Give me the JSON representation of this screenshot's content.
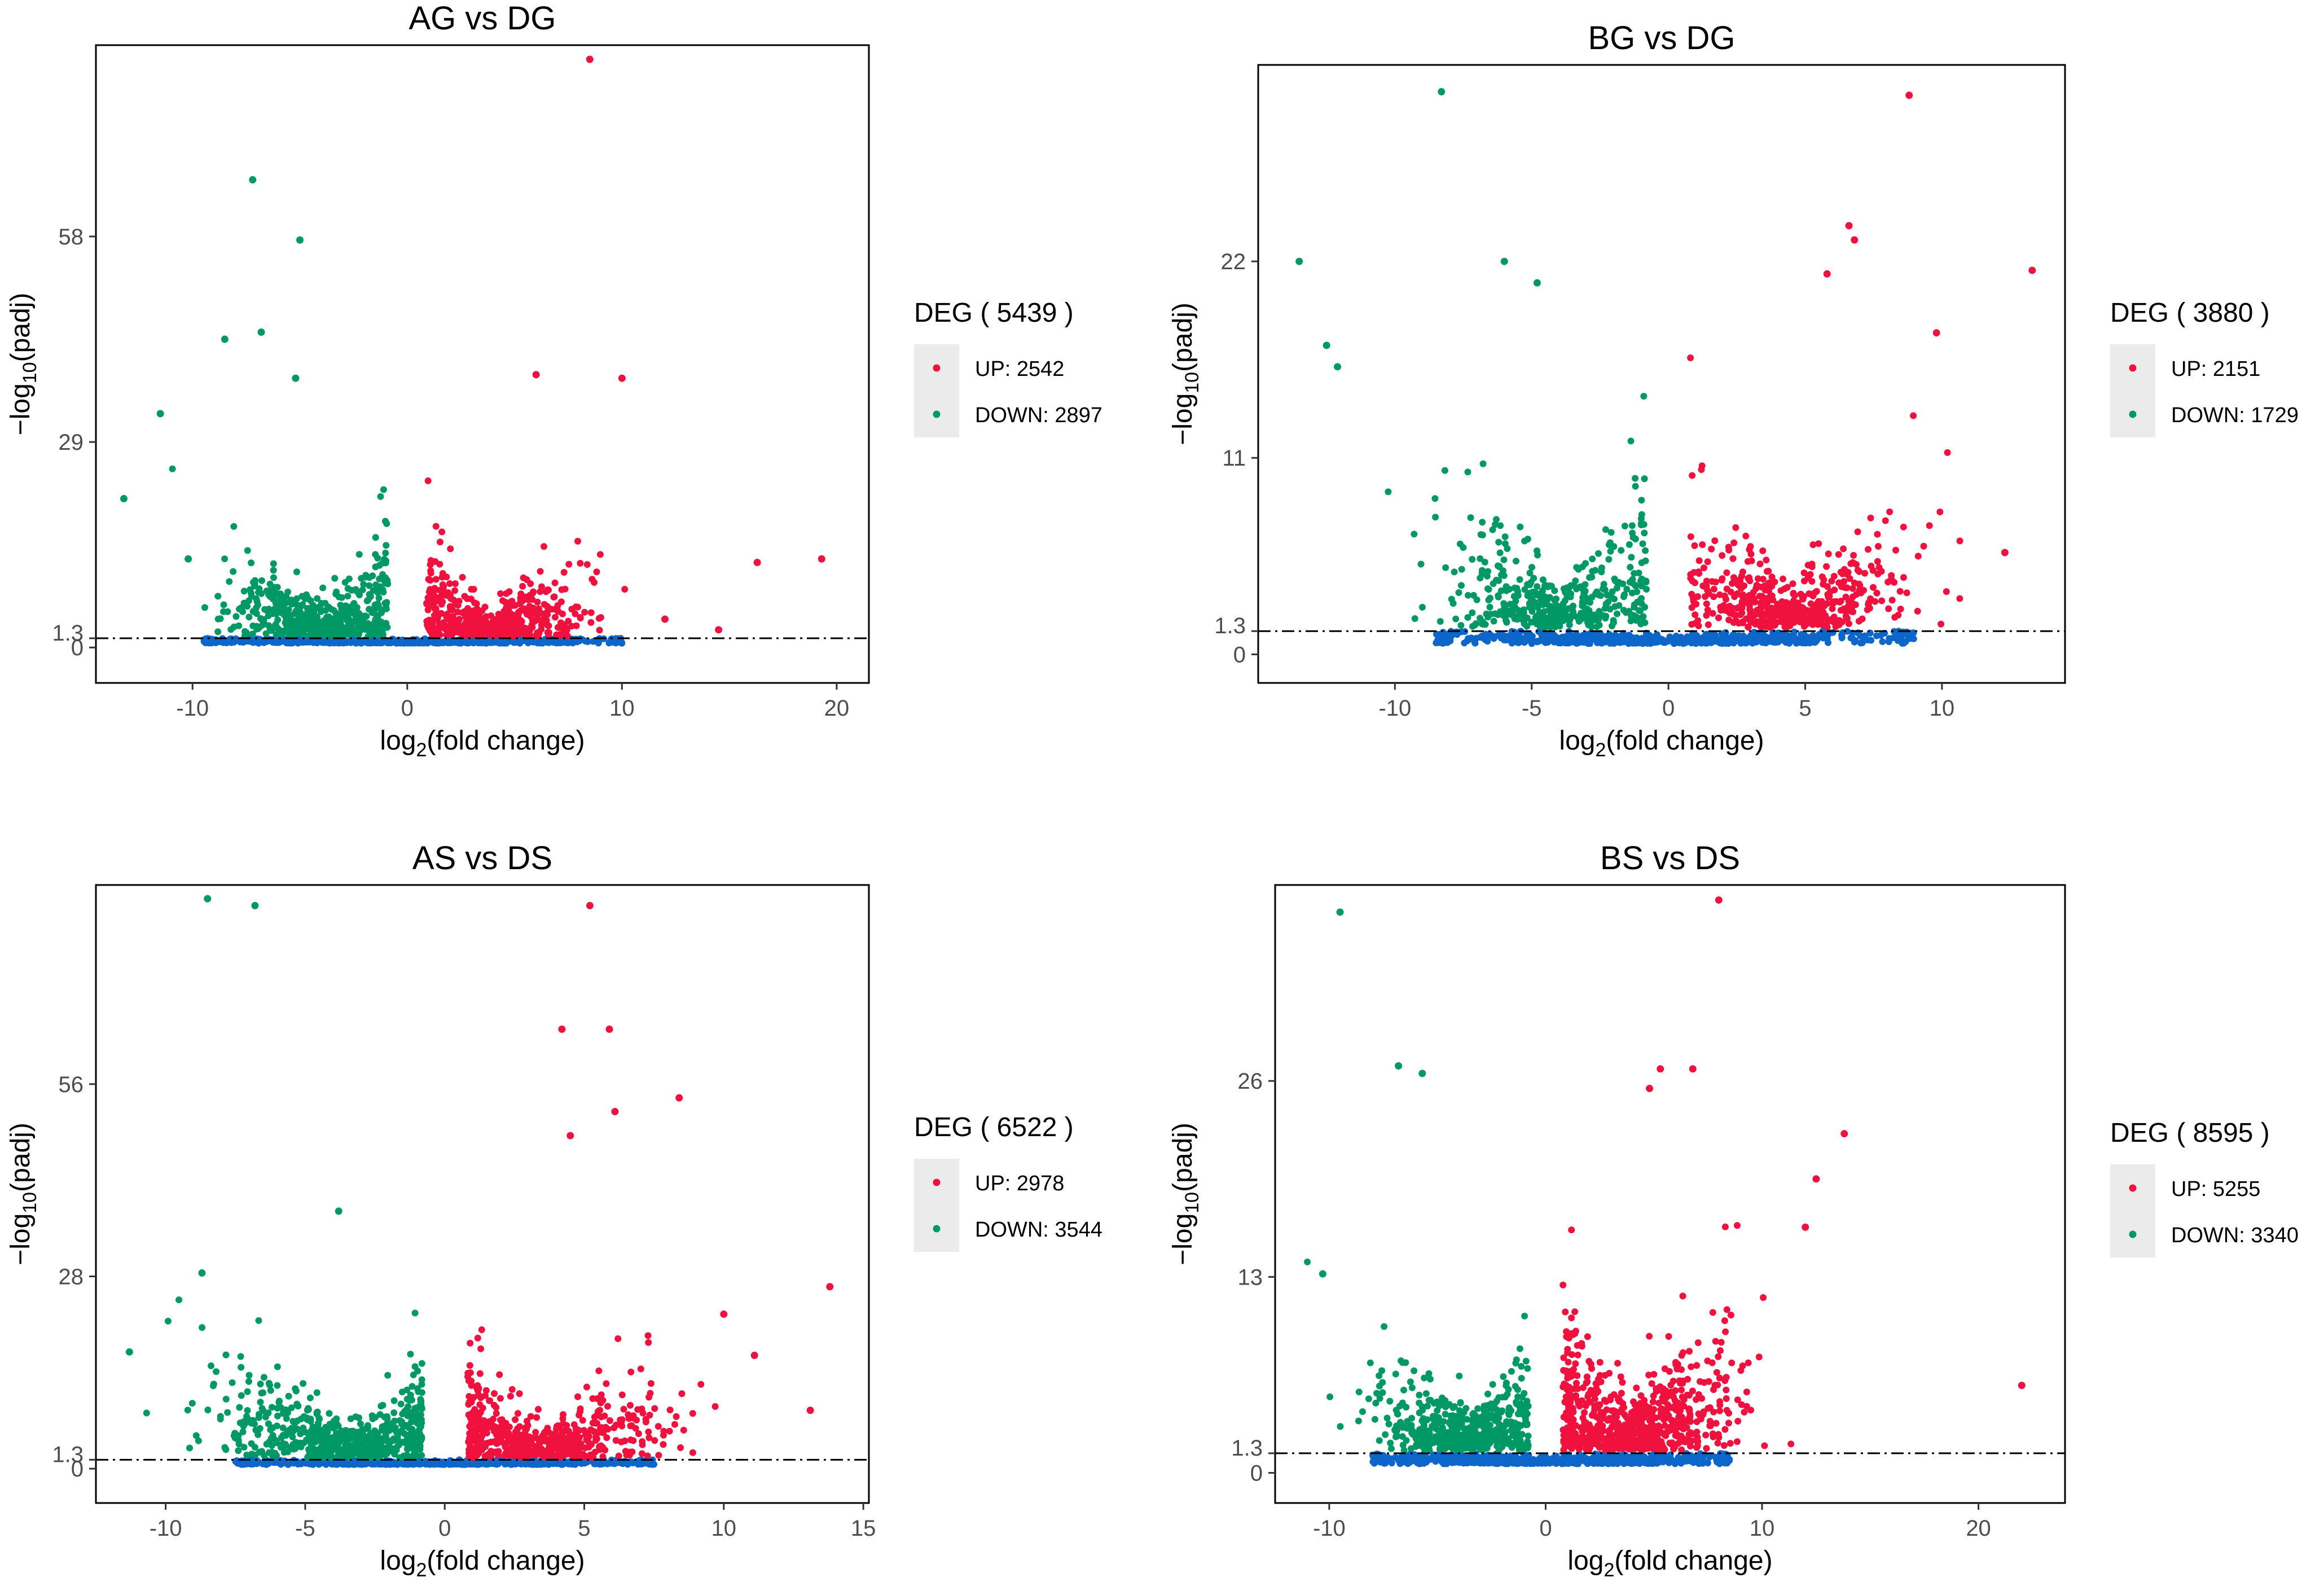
{
  "colors": {
    "up": "#f0113f",
    "down": "#009966",
    "ns": "#0d66c9",
    "frame": "#000000",
    "threshold": "#000000"
  },
  "axis_labels": {
    "x": "log",
    "x_sub": "2",
    "x_rest": "(fold change)",
    "y": "−log",
    "y_sub": "10",
    "y_rest": "(padj)"
  },
  "chart_data": [
    {
      "type": "scatter",
      "title": "AG vs DG",
      "threshold": 1.3,
      "threshold_label": "1.3",
      "xlim": [
        -14.5,
        21.5
      ],
      "ylim": [
        -5,
        85
      ],
      "xticks": [
        -10,
        0,
        10,
        20
      ],
      "yticks": [
        0,
        29,
        58
      ],
      "legend": {
        "title": "DEG ( 5439 )",
        "up": "UP: 2542",
        "down": "DOWN: 2897"
      },
      "points": [
        {
          "g": "up",
          "x": 8.5,
          "y": 83
        },
        {
          "g": "down",
          "x": -7.2,
          "y": 66
        },
        {
          "g": "down",
          "x": -5,
          "y": 57.5
        },
        {
          "g": "down",
          "x": -8.5,
          "y": 43.5
        },
        {
          "g": "down",
          "x": -6.8,
          "y": 44.5
        },
        {
          "g": "down",
          "x": -11.5,
          "y": 33
        },
        {
          "g": "down",
          "x": -5.2,
          "y": 38
        },
        {
          "g": "down",
          "x": -13.2,
          "y": 21
        },
        {
          "g": "up",
          "x": 6,
          "y": 38.5
        },
        {
          "g": "up",
          "x": 10,
          "y": 38
        },
        {
          "g": "up",
          "x": 16.3,
          "y": 12
        },
        {
          "g": "up",
          "x": 19.3,
          "y": 12.5
        },
        {
          "g": "down",
          "x": -10.2,
          "y": 12.5
        },
        {
          "g": "up",
          "x": 14.5,
          "y": 2.5
        },
        {
          "g": "up",
          "x": 12,
          "y": 4
        }
      ],
      "clouds": [
        {
          "g": "up",
          "cx": 4,
          "cy": 5,
          "sx": 2.2,
          "sy": 4,
          "n": 500,
          "xmin": 0.9,
          "ymin": 1.6,
          "ymax": 28
        },
        {
          "g": "down",
          "cx": -4,
          "cy": 6,
          "sx": 2.2,
          "sy": 4.5,
          "n": 520,
          "xmax": -0.9,
          "ymin": 1.6,
          "ymax": 28
        },
        {
          "g": "ns",
          "cx": 0,
          "cy": 0.6,
          "sx": 5.5,
          "sy": 0.35,
          "n": 700,
          "xmin": -9.5,
          "xmax": 10,
          "ymin": -0.5,
          "ymax": 1.3
        }
      ]
    },
    {
      "type": "scatter",
      "title": "BG vs DG",
      "threshold": 1.3,
      "threshold_label": "1.3",
      "xlim": [
        -15,
        14.5
      ],
      "ylim": [
        -1.6,
        33
      ],
      "xticks": [
        -10,
        -5,
        0,
        5,
        10
      ],
      "yticks": [
        0,
        11,
        22
      ],
      "legend": {
        "title": "DEG ( 3880 )",
        "up": "UP: 2151",
        "down": "DOWN: 1729"
      },
      "points": [
        {
          "g": "down",
          "x": -8.3,
          "y": 31.5
        },
        {
          "g": "up",
          "x": 8.8,
          "y": 31.3
        },
        {
          "g": "down",
          "x": -13.5,
          "y": 22
        },
        {
          "g": "down",
          "x": -6,
          "y": 22
        },
        {
          "g": "down",
          "x": -4.8,
          "y": 20.8
        },
        {
          "g": "up",
          "x": 13.3,
          "y": 21.5
        },
        {
          "g": "up",
          "x": 6.6,
          "y": 24
        },
        {
          "g": "up",
          "x": 6.8,
          "y": 23.2
        },
        {
          "g": "up",
          "x": 5.8,
          "y": 21.3
        },
        {
          "g": "up",
          "x": 9.8,
          "y": 18
        },
        {
          "g": "down",
          "x": -12.5,
          "y": 17.3
        },
        {
          "g": "down",
          "x": -12.1,
          "y": 16.1
        },
        {
          "g": "up",
          "x": 12.3,
          "y": 5.7
        }
      ],
      "clouds": [
        {
          "g": "up",
          "cx": 4.5,
          "cy": 4,
          "sx": 2.2,
          "sy": 2.6,
          "n": 480,
          "xmin": 0.8,
          "ymin": 1.5,
          "ymax": 17
        },
        {
          "g": "down",
          "cx": -4,
          "cy": 4,
          "sx": 2.2,
          "sy": 2.6,
          "n": 430,
          "xmax": -0.8,
          "ymin": 1.5,
          "ymax": 17
        },
        {
          "g": "ns",
          "cx": 0,
          "cy": 0.6,
          "sx": 4.5,
          "sy": 0.35,
          "n": 650,
          "xmin": -8.5,
          "xmax": 9,
          "ymin": -0.1,
          "ymax": 1.3
        }
      ]
    },
    {
      "type": "scatter",
      "title": "AS vs DS",
      "threshold": 1.3,
      "threshold_label": "1.3",
      "xlim": [
        -12.5,
        15.2
      ],
      "ylim": [
        -5,
        85
      ],
      "xticks": [
        -10,
        -5,
        0,
        5,
        10,
        15
      ],
      "yticks": [
        0,
        28,
        56
      ],
      "legend": {
        "title": "DEG ( 6522 )",
        "up": "UP: 2978",
        "down": "DOWN: 3544"
      },
      "points": [
        {
          "g": "down",
          "x": -8.5,
          "y": 83
        },
        {
          "g": "down",
          "x": -6.8,
          "y": 82
        },
        {
          "g": "up",
          "x": 5.2,
          "y": 82
        },
        {
          "g": "up",
          "x": 4.2,
          "y": 64
        },
        {
          "g": "up",
          "x": 5.9,
          "y": 64
        },
        {
          "g": "up",
          "x": 6.1,
          "y": 52
        },
        {
          "g": "up",
          "x": 8.4,
          "y": 54
        },
        {
          "g": "up",
          "x": 4.5,
          "y": 48.5
        },
        {
          "g": "up",
          "x": 13.8,
          "y": 26.5
        },
        {
          "g": "up",
          "x": 10,
          "y": 22.5
        },
        {
          "g": "down",
          "x": -11.3,
          "y": 17
        },
        {
          "g": "up",
          "x": 13.1,
          "y": 8.5
        },
        {
          "g": "up",
          "x": 11.1,
          "y": 16.5
        },
        {
          "g": "down",
          "x": -8.7,
          "y": 28.5
        },
        {
          "g": "down",
          "x": -3.8,
          "y": 37.5
        }
      ],
      "clouds": [
        {
          "g": "up",
          "cx": 3.5,
          "cy": 5,
          "sx": 2.2,
          "sy": 5,
          "n": 550,
          "xmin": 0.8,
          "ymin": 1.6,
          "ymax": 35
        },
        {
          "g": "down",
          "cx": -3.5,
          "cy": 5,
          "sx": 2.3,
          "sy": 5,
          "n": 600,
          "xmax": -0.8,
          "ymin": 1.6,
          "ymax": 33
        },
        {
          "g": "ns",
          "cx": 0,
          "cy": 0.6,
          "sx": 4.5,
          "sy": 0.35,
          "n": 700,
          "xmin": -7.5,
          "xmax": 7.5,
          "ymin": -0.5,
          "ymax": 1.3
        }
      ]
    },
    {
      "type": "scatter",
      "title": "BS vs DS",
      "threshold": 1.3,
      "threshold_label": "1.3",
      "xlim": [
        -12.5,
        24
      ],
      "ylim": [
        -2,
        39
      ],
      "xticks": [
        -10,
        0,
        10,
        20
      ],
      "yticks": [
        0,
        13,
        26
      ],
      "legend": {
        "title": "DEG ( 8595 )",
        "up": "UP: 5255",
        "down": "DOWN: 3340"
      },
      "points": [
        {
          "g": "up",
          "x": 8,
          "y": 38
        },
        {
          "g": "down",
          "x": -9.5,
          "y": 37.2
        },
        {
          "g": "down",
          "x": -6.8,
          "y": 27
        },
        {
          "g": "down",
          "x": -5.7,
          "y": 26.5
        },
        {
          "g": "up",
          "x": 6.8,
          "y": 26.8
        },
        {
          "g": "up",
          "x": 13.8,
          "y": 22.5
        },
        {
          "g": "up",
          "x": 12.5,
          "y": 19.5
        },
        {
          "g": "up",
          "x": 22,
          "y": 5.8
        },
        {
          "g": "down",
          "x": -10.3,
          "y": 13.2
        },
        {
          "g": "up",
          "x": 5.3,
          "y": 26.8
        },
        {
          "g": "up",
          "x": 4.8,
          "y": 25.5
        },
        {
          "g": "up",
          "x": 12,
          "y": 16.3
        }
      ],
      "clouds": [
        {
          "g": "up",
          "cx": 4,
          "cy": 4.5,
          "sx": 2.5,
          "sy": 3.2,
          "n": 700,
          "xmin": 0.8,
          "ymin": 1.5,
          "ymax": 22
        },
        {
          "g": "down",
          "cx": -3.5,
          "cy": 3.5,
          "sx": 2.1,
          "sy": 2.4,
          "n": 500,
          "xmax": -0.8,
          "ymin": 1.5,
          "ymax": 20
        },
        {
          "g": "ns",
          "cx": 0,
          "cy": 0.6,
          "sx": 4.5,
          "sy": 0.35,
          "n": 700,
          "xmin": -8,
          "xmax": 8.5,
          "ymin": -0.2,
          "ymax": 1.3
        }
      ]
    }
  ]
}
